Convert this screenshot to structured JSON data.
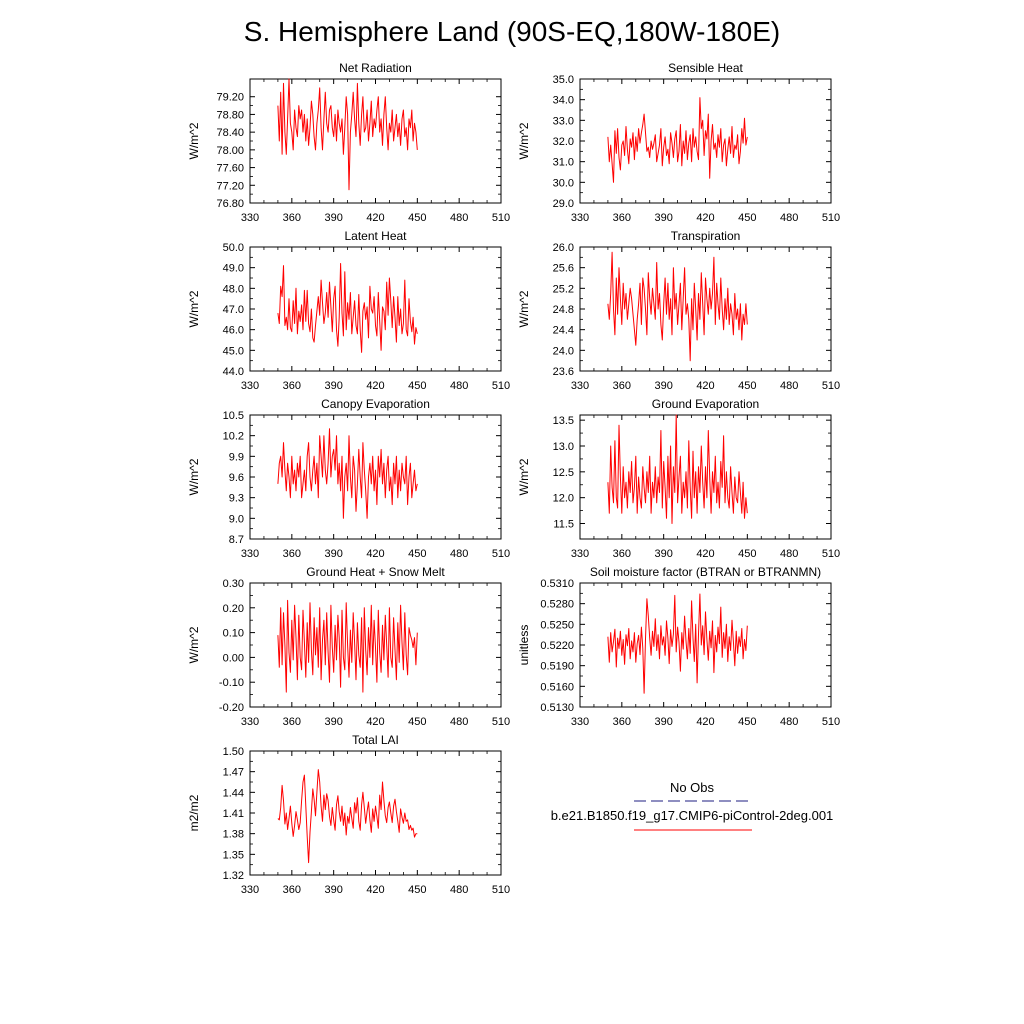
{
  "title": "S. Hemisphere Land (90S-EQ,180W-180E)",
  "legend": {
    "obs_label": "No Obs",
    "model_label": "b.e21.B1850.f19_g17.CMIP6-piControl-2deg.001",
    "obs_color": "#4a4a9a",
    "model_color": "#ff0000"
  },
  "chart_data": [
    {
      "type": "line",
      "title": "Net Radiation",
      "ylabel": "W/m^2",
      "xlim": [
        330,
        510
      ],
      "xticks": [
        330,
        360,
        390,
        420,
        450,
        480,
        510
      ],
      "ylim": [
        76.8,
        79.6
      ],
      "yticks": [
        "76.80",
        "77.20",
        "77.60",
        "78.00",
        "78.40",
        "78.80",
        "79.20"
      ],
      "x_start": 350,
      "x_step": 1,
      "values": [
        79.0,
        78.2,
        79.3,
        77.9,
        79.5,
        78.4,
        77.9,
        78.7,
        79.6,
        78.6,
        78.4,
        78.0,
        78.9,
        78.5,
        78.3,
        79.0,
        78.7,
        78.9,
        78.4,
        78.8,
        78.2,
        78.7,
        78.1,
        78.5,
        79.1,
        78.8,
        78.3,
        78.0,
        78.6,
        78.9,
        79.4,
        78.5,
        78.0,
        78.7,
        79.3,
        78.6,
        78.4,
        78.9,
        79.0,
        78.5,
        78.3,
        78.8,
        78.2,
        78.9,
        78.6,
        78.4,
        78.7,
        77.9,
        78.5,
        79.2,
        78.8,
        77.1,
        78.4,
        78.8,
        79.3,
        78.7,
        78.3,
        79.5,
        78.6,
        78.1,
        78.8,
        79.2,
        78.4,
        78.5,
        78.9,
        78.2,
        78.6,
        79.1,
        78.3,
        78.7,
        78.5,
        78.9,
        79.2,
        78.4,
        78.7,
        78.1,
        78.8,
        79.2,
        78.5,
        78.0,
        78.6,
        78.4,
        78.9,
        78.2,
        78.5,
        78.8,
        78.3,
        78.6,
        78.1,
        78.7,
        78.9,
        78.3,
        78.5,
        78.0,
        78.7,
        78.5,
        78.9,
        78.2,
        78.6,
        78.4,
        78.0
      ]
    },
    {
      "type": "line",
      "title": "Sensible Heat",
      "ylabel": "W/m^2",
      "xlim": [
        330,
        510
      ],
      "xticks": [
        330,
        360,
        390,
        420,
        450,
        480,
        510
      ],
      "ylim": [
        29.0,
        35.0
      ],
      "yticks": [
        "29.0",
        "30.0",
        "31.0",
        "32.0",
        "33.0",
        "34.0",
        "35.0"
      ],
      "x_start": 350,
      "x_step": 1,
      "values": [
        32.2,
        31.0,
        31.8,
        30.9,
        30.0,
        32.5,
        31.4,
        32.6,
        31.2,
        30.6,
        31.8,
        32.0,
        31.3,
        32.7,
        31.6,
        30.9,
        32.1,
        31.7,
        32.4,
        31.1,
        32.2,
        31.5,
        32.6,
        31.9,
        32.4,
        32.8,
        33.3,
        32.4,
        31.5,
        31.7,
        31.2,
        32.0,
        31.6,
        31.9,
        32.3,
        31.0,
        31.4,
        31.8,
        32.6,
        30.8,
        31.7,
        32.2,
        31.3,
        31.6,
        30.9,
        32.4,
        31.9,
        31.2,
        32.1,
        32.5,
        31.0,
        31.5,
        32.8,
        30.8,
        32.0,
        31.4,
        32.5,
        31.1,
        31.9,
        32.3,
        31.0,
        32.6,
        31.7,
        32.2,
        31.5,
        31.1,
        34.1,
        32.6,
        33.0,
        31.3,
        32.5,
        32.1,
        33.3,
        30.2,
        32.0,
        32.8,
        31.6,
        31.9,
        31.2,
        32.3,
        31.7,
        32.6,
        31.0,
        31.8,
        32.1,
        30.8,
        31.6,
        32.2,
        31.4,
        32.7,
        31.2,
        31.8,
        31.6,
        32.3,
        30.9,
        31.5,
        32.6,
        31.9,
        33.1,
        31.8,
        32.2
      ]
    },
    {
      "type": "line",
      "title": "Latent Heat",
      "ylabel": "W/m^2",
      "xlim": [
        330,
        510
      ],
      "xticks": [
        330,
        360,
        390,
        420,
        450,
        480,
        510
      ],
      "ylim": [
        44.0,
        50.0
      ],
      "yticks": [
        "44.0",
        "45.0",
        "46.0",
        "47.0",
        "48.0",
        "49.0",
        "50.0"
      ],
      "x_start": 350,
      "x_step": 1,
      "values": [
        46.8,
        46.3,
        48.1,
        47.6,
        49.1,
        46.2,
        46.6,
        46.0,
        47.5,
        46.1,
        45.9,
        47.4,
        46.3,
        48.0,
        45.8,
        46.9,
        46.4,
        47.2,
        46.0,
        47.9,
        46.4,
        47.9,
        46.3,
        45.9,
        47.0,
        45.6,
        45.4,
        46.2,
        46.9,
        47.6,
        46.7,
        48.4,
        47.3,
        46.3,
        46.8,
        47.8,
        46.6,
        48.3,
        47.1,
        45.9,
        47.5,
        48.1,
        46.0,
        45.2,
        46.6,
        49.2,
        46.8,
        45.7,
        48.8,
        46.0,
        47.3,
        46.5,
        47.8,
        45.8,
        46.6,
        47.4,
        46.2,
        45.8,
        47.7,
        46.0,
        44.9,
        46.9,
        47.3,
        46.5,
        47.1,
        45.6,
        48.1,
        47.0,
        46.8,
        47.6,
        46.2,
        45.7,
        47.8,
        46.4,
        45.0,
        47.1,
        46.9,
        46.0,
        48.3,
        46.7,
        48.5,
        47.4,
        46.1,
        47.6,
        46.6,
        45.4,
        47.6,
        46.2,
        47.0,
        45.8,
        46.3,
        48.4,
        46.0,
        45.7,
        47.5,
        46.4,
        45.9,
        46.6,
        45.3,
        46.1,
        45.8
      ]
    },
    {
      "type": "line",
      "title": "Transpiration",
      "ylabel": "W/m^2",
      "xlim": [
        330,
        510
      ],
      "xticks": [
        330,
        360,
        390,
        420,
        450,
        480,
        510
      ],
      "ylim": [
        23.6,
        26.0
      ],
      "yticks": [
        "23.6",
        "24.0",
        "24.4",
        "24.8",
        "25.2",
        "25.6",
        "26.0"
      ],
      "x_start": 350,
      "x_step": 1,
      "values": [
        24.9,
        24.6,
        25.1,
        25.9,
        24.8,
        24.3,
        25.4,
        24.7,
        25.6,
        25.0,
        24.5,
        25.3,
        24.8,
        25.1,
        24.6,
        24.9,
        25.2,
        25.0,
        24.7,
        24.4,
        24.1,
        24.6,
        24.9,
        25.3,
        24.5,
        25.4,
        25.2,
        24.8,
        24.3,
        25.5,
        25.0,
        24.7,
        25.2,
        24.9,
        24.6,
        25.7,
        24.8,
        25.1,
        24.5,
        24.2,
        24.9,
        25.4,
        24.7,
        25.3,
        24.6,
        25.0,
        24.3,
        25.6,
        24.8,
        25.1,
        24.5,
        24.9,
        25.3,
        24.4,
        25.0,
        25.6,
        24.7,
        24.9,
        24.6,
        23.8,
        25.0,
        24.4,
        25.3,
        24.8,
        24.2,
        25.1,
        24.6,
        25.5,
        24.9,
        24.3,
        25.4,
        25.0,
        24.7,
        25.2,
        24.8,
        25.1,
        25.8,
        24.5,
        25.3,
        24.9,
        24.6,
        25.4,
        24.8,
        24.4,
        25.0,
        24.6,
        25.2,
        24.5,
        24.9,
        24.7,
        24.3,
        25.1,
        24.6,
        24.8,
        24.4,
        24.9,
        24.2,
        24.7,
        24.5,
        24.9,
        24.5
      ]
    },
    {
      "type": "line",
      "title": "Canopy Evaporation",
      "ylabel": "W/m^2",
      "xlim": [
        330,
        510
      ],
      "xticks": [
        330,
        360,
        390,
        420,
        450,
        480,
        510
      ],
      "ylim": [
        8.7,
        10.5
      ],
      "yticks": [
        "8.7",
        "9.0",
        "9.3",
        "9.6",
        "9.9",
        "10.2",
        "10.5"
      ],
      "x_start": 350,
      "x_step": 1,
      "values": [
        9.5,
        9.8,
        9.9,
        9.6,
        10.1,
        9.7,
        9.4,
        9.8,
        9.6,
        9.3,
        9.9,
        9.5,
        9.7,
        9.4,
        9.8,
        9.6,
        9.9,
        9.3,
        9.5,
        9.7,
        9.4,
        9.9,
        10.1,
        9.6,
        9.4,
        9.7,
        9.9,
        9.5,
        9.8,
        9.3,
        10.2,
        9.9,
        9.6,
        10.2,
        9.7,
        9.5,
        9.8,
        10.3,
        9.6,
        9.9,
        10.0,
        9.7,
        10.2,
        9.5,
        9.8,
        9.4,
        9.9,
        9.0,
        9.6,
        9.8,
        9.4,
        10.2,
        9.6,
        9.3,
        9.9,
        9.7,
        9.1,
        9.5,
        10.0,
        9.6,
        9.3,
        10.1,
        9.7,
        9.4,
        9.0,
        9.6,
        9.8,
        9.5,
        9.9,
        9.4,
        9.7,
        9.2,
        9.9,
        9.6,
        10.0,
        9.5,
        9.8,
        9.3,
        9.7,
        9.9,
        9.4,
        9.6,
        9.2,
        9.8,
        9.5,
        9.9,
        9.3,
        9.7,
        9.4,
        9.8,
        9.6,
        9.5,
        9.9,
        9.2,
        9.6,
        9.8,
        9.3,
        9.5,
        9.7,
        9.4,
        9.5
      ]
    },
    {
      "type": "line",
      "title": "Ground Evaporation",
      "ylabel": "W/m^2",
      "xlim": [
        330,
        510
      ],
      "xticks": [
        330,
        360,
        390,
        420,
        450,
        480,
        510
      ],
      "ylim": [
        11.2,
        13.6
      ],
      "yticks": [
        "11.5",
        "12.0",
        "12.5",
        "13.0",
        "13.5"
      ],
      "x_start": 350,
      "x_step": 1,
      "values": [
        12.3,
        11.7,
        13.0,
        12.2,
        11.9,
        13.1,
        12.0,
        11.8,
        13.4,
        12.4,
        11.7,
        12.6,
        12.0,
        12.3,
        11.8,
        12.5,
        12.1,
        12.7,
        11.9,
        12.2,
        12.8,
        11.7,
        12.4,
        12.0,
        11.8,
        12.6,
        12.2,
        11.9,
        12.5,
        12.1,
        12.8,
        11.7,
        12.3,
        12.0,
        12.6,
        11.9,
        12.4,
        12.1,
        13.3,
        11.8,
        12.7,
        12.2,
        11.6,
        12.8,
        12.0,
        13.0,
        11.5,
        12.6,
        12.1,
        13.6,
        11.9,
        12.4,
        12.8,
        11.7,
        12.3,
        12.0,
        12.5,
        11.8,
        13.1,
        12.2,
        11.6,
        12.9,
        12.0,
        12.5,
        11.7,
        12.6,
        12.1,
        13.0,
        12.3,
        11.8,
        12.6,
        12.0,
        13.3,
        12.4,
        11.7,
        12.5,
        12.1,
        12.8,
        11.9,
        12.3,
        11.8,
        12.7,
        12.2,
        13.2,
        11.9,
        12.5,
        12.0,
        11.8,
        12.6,
        12.1,
        11.7,
        12.4,
        12.0,
        11.9,
        12.5,
        12.1,
        11.7,
        12.3,
        11.6,
        12.0,
        11.7
      ]
    },
    {
      "type": "line",
      "title": "Ground Heat + Snow Melt",
      "ylabel": "W/m^2",
      "xlim": [
        330,
        510
      ],
      "xticks": [
        330,
        360,
        390,
        420,
        450,
        480,
        510
      ],
      "ylim": [
        -0.2,
        0.3
      ],
      "yticks": [
        "-0.20",
        "-0.10",
        "0.00",
        "0.10",
        "0.20",
        "0.30"
      ],
      "x_start": 350,
      "x_step": 1,
      "values": [
        0.09,
        -0.04,
        0.2,
        -0.03,
        0.18,
        0.05,
        -0.14,
        0.23,
        0.02,
        -0.06,
        0.15,
        -0.01,
        0.21,
        0.08,
        -0.09,
        0.17,
        0.0,
        -0.05,
        0.19,
        0.06,
        -0.08,
        0.14,
        -0.02,
        0.22,
        0.03,
        -0.07,
        0.16,
        0.01,
        0.12,
        -0.04,
        0.2,
        -0.09,
        0.07,
        0.15,
        -0.03,
        0.18,
        0.02,
        -0.1,
        0.21,
        0.04,
        -0.06,
        0.13,
        -0.01,
        0.17,
        0.08,
        -0.12,
        0.19,
        0.0,
        -0.05,
        0.22,
        0.05,
        -0.08,
        0.11,
        -0.02,
        0.18,
        0.06,
        -0.09,
        0.14,
        0.01,
        -0.04,
        0.16,
        -0.14,
        0.2,
        0.03,
        -0.07,
        0.12,
        0.0,
        0.21,
        -0.03,
        0.15,
        0.04,
        -0.1,
        0.19,
        0.02,
        -0.06,
        0.13,
        -0.01,
        0.17,
        0.05,
        -0.08,
        0.2,
        0.0,
        -0.04,
        0.16,
        0.03,
        -0.09,
        0.14,
        -0.02,
        0.21,
        0.06,
        -0.05,
        0.18,
        0.01,
        -0.07,
        0.12,
        0.09,
        0.07,
        0.04,
        0.08,
        -0.03,
        0.1
      ]
    },
    {
      "type": "line",
      "title": "Soil moisture factor (BTRAN or BTRANMN)",
      "ylabel": "unitless",
      "xlim": [
        330,
        510
      ],
      "xticks": [
        330,
        360,
        390,
        420,
        450,
        480,
        510
      ],
      "ylim": [
        0.513,
        0.531
      ],
      "yticks": [
        "0.5130",
        "0.5160",
        "0.5190",
        "0.5220",
        "0.5250",
        "0.5280",
        "0.5310"
      ],
      "x_start": 350,
      "x_step": 1,
      "values": [
        0.5232,
        0.5195,
        0.5238,
        0.521,
        0.5225,
        0.5243,
        0.5188,
        0.523,
        0.5215,
        0.524,
        0.5205,
        0.5228,
        0.5192,
        0.5235,
        0.5219,
        0.5244,
        0.52,
        0.5226,
        0.521,
        0.5238,
        0.5195,
        0.5222,
        0.5234,
        0.5206,
        0.5246,
        0.5215,
        0.515,
        0.5229,
        0.5287,
        0.5262,
        0.523,
        0.5205,
        0.524,
        0.5218,
        0.5258,
        0.5212,
        0.5235,
        0.52,
        0.5248,
        0.522,
        0.5232,
        0.5205,
        0.5255,
        0.523,
        0.5193,
        0.5242,
        0.5218,
        0.5236,
        0.5292,
        0.521,
        0.5246,
        0.5224,
        0.5182,
        0.5238,
        0.5214,
        0.5262,
        0.5226,
        0.52,
        0.5244,
        0.5208,
        0.5284,
        0.523,
        0.5196,
        0.525,
        0.5165,
        0.5236,
        0.5294,
        0.522,
        0.5248,
        0.5206,
        0.5268,
        0.5228,
        0.5198,
        0.524,
        0.5216,
        0.5255,
        0.518,
        0.5234,
        0.521,
        0.5246,
        0.5222,
        0.5275,
        0.5202,
        0.5238,
        0.5215,
        0.525,
        0.5196,
        0.5232,
        0.5212,
        0.5256,
        0.5225,
        0.519,
        0.524,
        0.5208,
        0.5232,
        0.5218,
        0.5244,
        0.52,
        0.5228,
        0.5212,
        0.5248
      ]
    },
    {
      "type": "line",
      "title": "Total LAI",
      "ylabel": "m2/m2",
      "xlim": [
        330,
        510
      ],
      "xticks": [
        330,
        360,
        390,
        420,
        450,
        480,
        510
      ],
      "ylim": [
        1.32,
        1.5
      ],
      "yticks": [
        "1.32",
        "1.35",
        "1.38",
        "1.41",
        "1.44",
        "1.47",
        "1.50"
      ],
      "x_start": 350,
      "x_step": 1,
      "values": [
        1.402,
        1.4,
        1.418,
        1.45,
        1.428,
        1.394,
        1.41,
        1.386,
        1.402,
        1.42,
        1.395,
        1.376,
        1.392,
        1.412,
        1.4,
        1.386,
        1.396,
        1.428,
        1.455,
        1.465,
        1.42,
        1.376,
        1.338,
        1.382,
        1.412,
        1.445,
        1.43,
        1.406,
        1.44,
        1.473,
        1.455,
        1.42,
        1.398,
        1.436,
        1.415,
        1.438,
        1.428,
        1.405,
        1.392,
        1.418,
        1.4,
        1.385,
        1.422,
        1.435,
        1.412,
        1.398,
        1.42,
        1.392,
        1.41,
        1.378,
        1.405,
        1.395,
        1.418,
        1.402,
        1.388,
        1.425,
        1.41,
        1.432,
        1.398,
        1.385,
        1.422,
        1.44,
        1.418,
        1.395,
        1.412,
        1.426,
        1.4,
        1.382,
        1.416,
        1.398,
        1.42,
        1.405,
        1.388,
        1.436,
        1.415,
        1.455,
        1.428,
        1.406,
        1.396,
        1.418,
        1.426,
        1.41,
        1.396,
        1.42,
        1.43,
        1.412,
        1.398,
        1.382,
        1.416,
        1.404,
        1.395,
        1.41,
        1.398,
        1.4,
        1.386,
        1.392,
        1.385,
        1.388,
        1.375,
        1.38,
        1.38
      ]
    }
  ]
}
